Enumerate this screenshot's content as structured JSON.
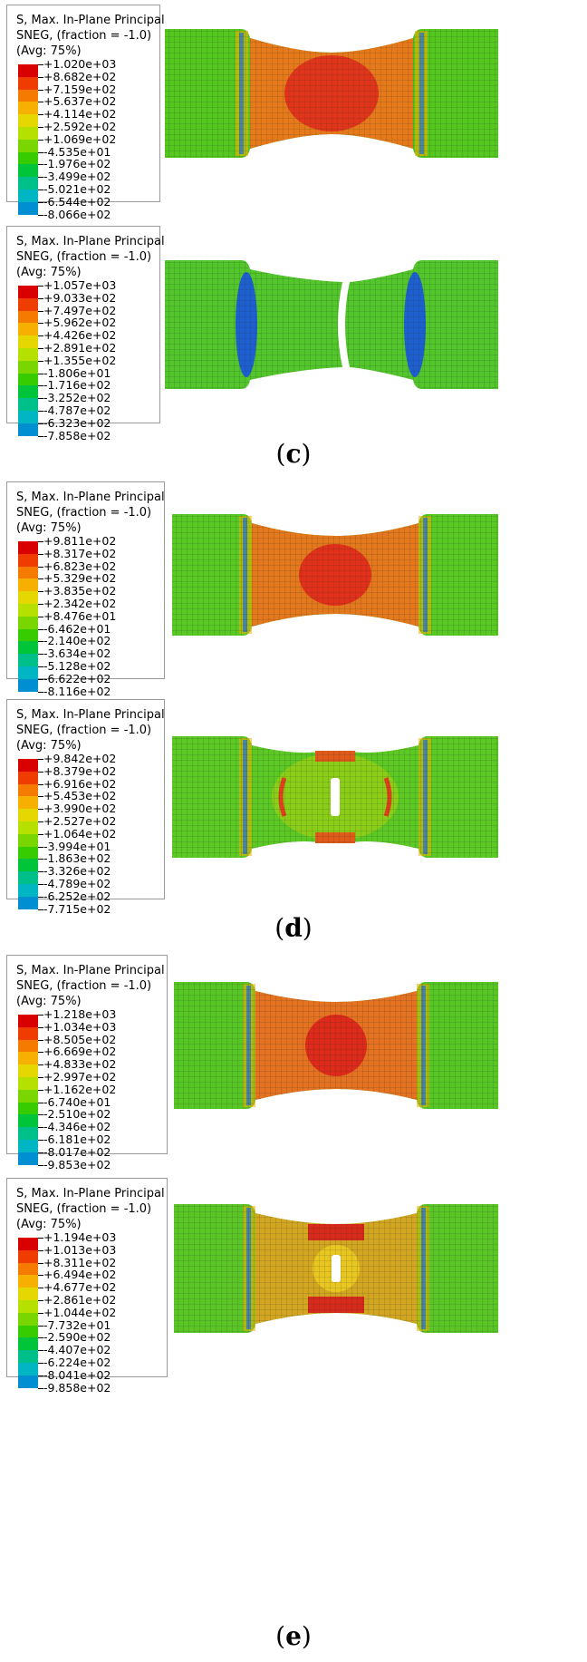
{
  "legend_title_lines": [
    "S, Max. In-Plane Principal",
    "SNEG, (fraction = -1.0)",
    "(Avg: 75%)"
  ],
  "colors": [
    "#d90000",
    "#ef3c00",
    "#f47a00",
    "#f6b000",
    "#e4d800",
    "#b6e000",
    "#7ad600",
    "#36cc00",
    "#00c43a",
    "#00c08a",
    "#00b6c2",
    "#0090d2",
    "#0052d8",
    "#0000d6"
  ],
  "panels": [
    {
      "values": [
        "+1.020e+03",
        "+8.682e+02",
        "+7.159e+02",
        "+5.637e+02",
        "+4.114e+02",
        "+2.592e+02",
        "+1.069e+02",
        "-4.535e+01",
        "-1.976e+02",
        "-3.499e+02",
        "-5.021e+02",
        "-6.544e+02",
        "-8.066e+02"
      ]
    },
    {
      "values": [
        "+1.057e+03",
        "+9.033e+02",
        "+7.497e+02",
        "+5.962e+02",
        "+4.426e+02",
        "+2.891e+02",
        "+1.355e+02",
        "-1.806e+01",
        "-1.716e+02",
        "-3.252e+02",
        "-4.787e+02",
        "-6.323e+02",
        "-7.858e+02"
      ]
    },
    {
      "values": [
        "+9.811e+02",
        "+8.317e+02",
        "+6.823e+02",
        "+5.329e+02",
        "+3.835e+02",
        "+2.342e+02",
        "+8.476e+01",
        "-6.462e+01",
        "-2.140e+02",
        "-3.634e+02",
        "-5.128e+02",
        "-6.622e+02",
        "-8.116e+02"
      ]
    },
    {
      "values": [
        "+9.842e+02",
        "+8.379e+02",
        "+6.916e+02",
        "+5.453e+02",
        "+3.990e+02",
        "+2.527e+02",
        "+1.064e+02",
        "-3.994e+01",
        "-1.863e+02",
        "-3.326e+02",
        "-4.789e+02",
        "-6.252e+02",
        "-7.715e+02"
      ]
    },
    {
      "values": [
        "+1.218e+03",
        "+1.034e+03",
        "+8.505e+02",
        "+6.669e+02",
        "+4.833e+02",
        "+2.997e+02",
        "+1.162e+02",
        "-6.740e+01",
        "-2.510e+02",
        "-4.346e+02",
        "-6.181e+02",
        "-8.017e+02",
        "-9.853e+02"
      ]
    },
    {
      "values": [
        "+1.194e+03",
        "+1.013e+03",
        "+8.311e+02",
        "+6.494e+02",
        "+4.677e+02",
        "+2.861e+02",
        "+1.044e+02",
        "-7.732e+01",
        "-2.590e+02",
        "-4.407e+02",
        "-6.224e+02",
        "-8.041e+02",
        "-9.858e+02"
      ]
    }
  ],
  "captions": {
    "c": "c",
    "d": "d",
    "e": "e"
  }
}
